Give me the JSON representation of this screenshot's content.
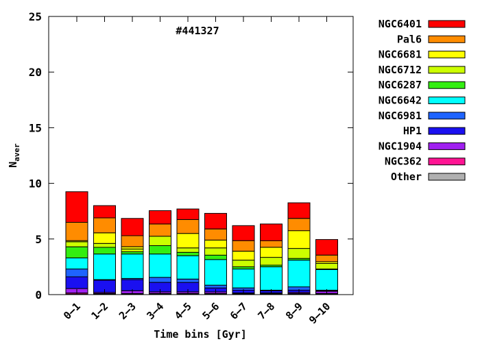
{
  "chart_data": {
    "type": "bar",
    "stacked": true,
    "title": "#441327",
    "xlabel": "Time bins [Gyr]",
    "ylabel_main": "N",
    "ylabel_sub": "aver",
    "ylim": [
      0,
      25
    ],
    "yticks": [
      0,
      5,
      10,
      15,
      20,
      25
    ],
    "grid": false,
    "legend_position": "right",
    "categories": [
      "0–1",
      "1–2",
      "2–3",
      "3–4",
      "4–5",
      "5–6",
      "6–7",
      "7–8",
      "8–9",
      "9–10"
    ],
    "series": [
      {
        "name": "Other",
        "color": "#b0b0b0",
        "values": [
          0.05,
          0.05,
          0.05,
          0.05,
          0.05,
          0.05,
          0.05,
          0.05,
          0.05,
          0.05
        ]
      },
      {
        "name": "NGC362",
        "color": "#ff1493",
        "values": [
          0.1,
          0.05,
          0.05,
          0.05,
          0.05,
          0.05,
          0.05,
          0.05,
          0.05,
          0.05
        ]
      },
      {
        "name": "NGC1904",
        "color": "#a020f0",
        "values": [
          0.4,
          0.1,
          0.25,
          0.15,
          0.15,
          0.15,
          0.05,
          0.05,
          0.1,
          0.2
        ]
      },
      {
        "name": "HP1",
        "color": "#1a10f0",
        "values": [
          1.05,
          1.1,
          1.0,
          0.85,
          0.85,
          0.35,
          0.25,
          0.2,
          0.2,
          0.05
        ]
      },
      {
        "name": "NGC6981",
        "color": "#1e64ff",
        "values": [
          0.7,
          0.05,
          0.1,
          0.45,
          0.3,
          0.25,
          0.2,
          0.05,
          0.3,
          0.05
        ]
      },
      {
        "name": "NGC6642",
        "color": "#00ffff",
        "values": [
          1.0,
          2.3,
          2.2,
          2.1,
          2.1,
          2.3,
          1.7,
          2.1,
          2.4,
          1.85
        ]
      },
      {
        "name": "NGC6287",
        "color": "#33ee11",
        "values": [
          1.0,
          0.6,
          0.2,
          0.75,
          0.3,
          0.4,
          0.2,
          0.15,
          0.15,
          0.05
        ]
      },
      {
        "name": "NGC6712",
        "color": "#ccff00",
        "values": [
          0.45,
          0.35,
          0.25,
          0.85,
          0.4,
          0.65,
          0.6,
          0.7,
          0.9,
          0.5
        ]
      },
      {
        "name": "NGC6681",
        "color": "#ffff00",
        "values": [
          0.1,
          0.95,
          0.2,
          0.0,
          1.3,
          0.7,
          0.8,
          0.9,
          1.6,
          0.15
        ]
      },
      {
        "name": "Pal6",
        "color": "#ff8c00",
        "values": [
          1.65,
          1.35,
          1.0,
          1.1,
          1.25,
          1.0,
          0.95,
          0.6,
          1.1,
          0.6
        ]
      },
      {
        "name": "NGC6401",
        "color": "#ff0000",
        "values": [
          2.75,
          1.1,
          1.55,
          1.2,
          0.95,
          1.4,
          1.35,
          1.5,
          1.4,
          1.4
        ]
      }
    ],
    "legend_order": [
      "NGC6401",
      "Pal6",
      "NGC6681",
      "NGC6712",
      "NGC6287",
      "NGC6642",
      "NGC6981",
      "HP1",
      "NGC1904",
      "NGC362",
      "Other"
    ]
  }
}
